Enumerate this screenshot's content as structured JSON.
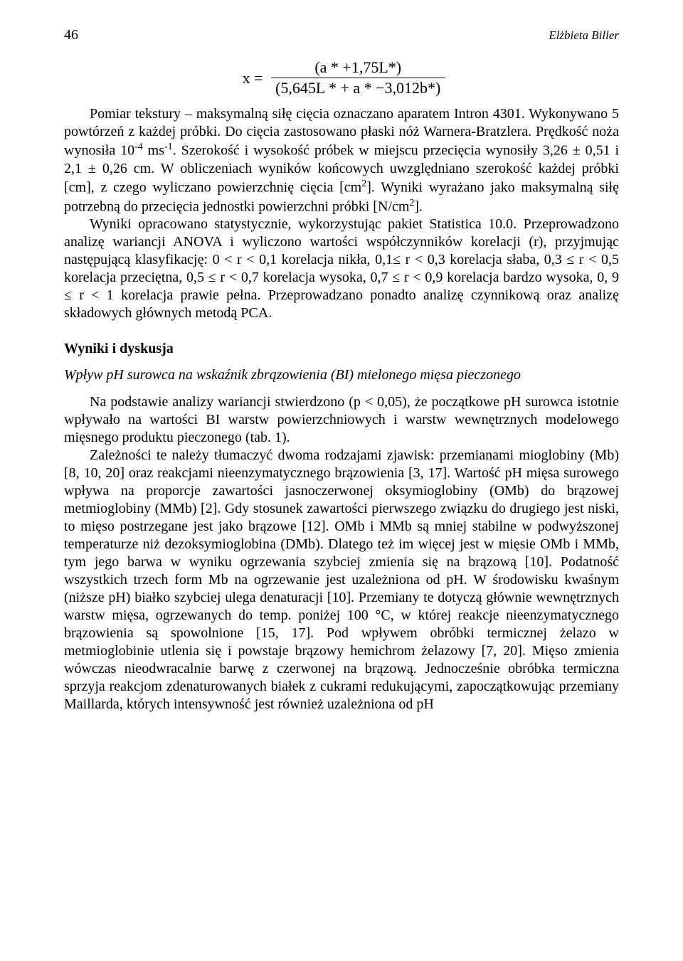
{
  "page_number": "46",
  "author": "Elżbieta Biller",
  "formula": {
    "lhs": "x",
    "numerator": "(a * +1,75L*)",
    "denominator": "(5,645L * + a * −3,012b*)"
  },
  "para1_a": "Pomiar tekstury – maksymalną siłę cięcia oznaczano aparatem Intron 4301. Wykonywano 5 powtórzeń z każdej próbki. Do cięcia zastosowano płaski nóż Warnera-Bratzlera. Prędkość noża wynosiła 10",
  "para1_sup1": "-4",
  "para1_b": " ms",
  "para1_sup2": "-1",
  "para1_c": ". Szerokość i wysokość próbek w miejscu przecięcia wynosiły 3,26 ± 0,51 i 2,1 ± 0,26 cm. W obliczeniach wyników końcowych uwzględniano szerokość każdej próbki [cm], z czego wyliczano powierzchnię cięcia [cm",
  "para1_sup3": "2",
  "para1_d": "]. Wyniki wyrażano jako maksymalną siłę potrzebną do przecięcia jednostki powierzchni próbki [N/cm",
  "para1_sup4": "2",
  "para1_e": "].",
  "para2": "Wyniki opracowano statystycznie, wykorzystując pakiet Statistica 10.0. Przeprowadzono analizę wariancji ANOVA i wyliczono wartości współczynników korelacji (r), przyjmując następującą klasyfikację: 0 < r < 0,1 korelacja nikła, 0,1≤ r < 0,3 korelacja słaba, 0,3 ≤ r < 0,5 korelacja przeciętna, 0,5 ≤ r < 0,7 korelacja wysoka, 0,7 ≤ r < 0,9 korelacja bardzo wysoka, 0, 9 ≤ r < 1 korelacja prawie pełna. Przeprowadzano ponadto analizę czynnikową oraz analizę składowych głównych metodą PCA.",
  "heading_results": "Wyniki i dyskusja",
  "subheading": "Wpływ pH surowca na wskaźnik zbrązowienia (BI) mielonego mięsa pieczonego",
  "para3": "Na podstawie analizy wariancji stwierdzono (p < 0,05), że początkowe pH surowca istotnie wpływało na wartości BI warstw powierzchniowych i warstw wewnętrznych modelowego mięsnego produktu pieczonego (tab. 1).",
  "para4": "Zależności te należy tłumaczyć dwoma rodzajami zjawisk: przemianami mioglobiny (Mb) [8, 10, 20] oraz reakcjami nieenzymatycznego brązowienia [3, 17]. Wartość pH mięsa surowego wpływa na proporcje zawartości jasnoczerwonej oksymioglobiny (OMb) do brązowej metmioglobiny (MMb) [2]. Gdy stosunek zawartości pierwszego związku do drugiego jest niski, to mięso postrzegane jest jako brązowe [12]. OMb i MMb są mniej stabilne w podwyższonej temperaturze niż dezoksymioglobina (DMb). Dlatego też im więcej jest w mięsie OMb i MMb, tym jego barwa w wyniku ogrzewania szybciej zmienia się na brązową [10]. Podatność wszystkich trzech form Mb na ogrzewanie jest uzależniona od pH. W środowisku kwaśnym (niższe pH) białko szybciej ulega denaturacji [10]. Przemiany te dotyczą głównie wewnętrznych warstw mięsa, ogrzewanych do temp. poniżej 100 °C, w której reakcje nieenzymatycznego brązowienia są spowolnione [15, 17]. Pod wpływem obróbki termicznej żelazo w metmioglobinie utlenia się i powstaje brązowy hemichrom żelazowy [7, 20]. Mięso zmienia wówczas nieodwracalnie barwę z czerwonej na brązową. Jednocześnie obróbka termiczna sprzyja reakcjom zdenaturowanych białek z cukrami redukującymi, zapoczątkowując przemiany Maillarda, których intensywność jest również uzależniona od pH"
}
